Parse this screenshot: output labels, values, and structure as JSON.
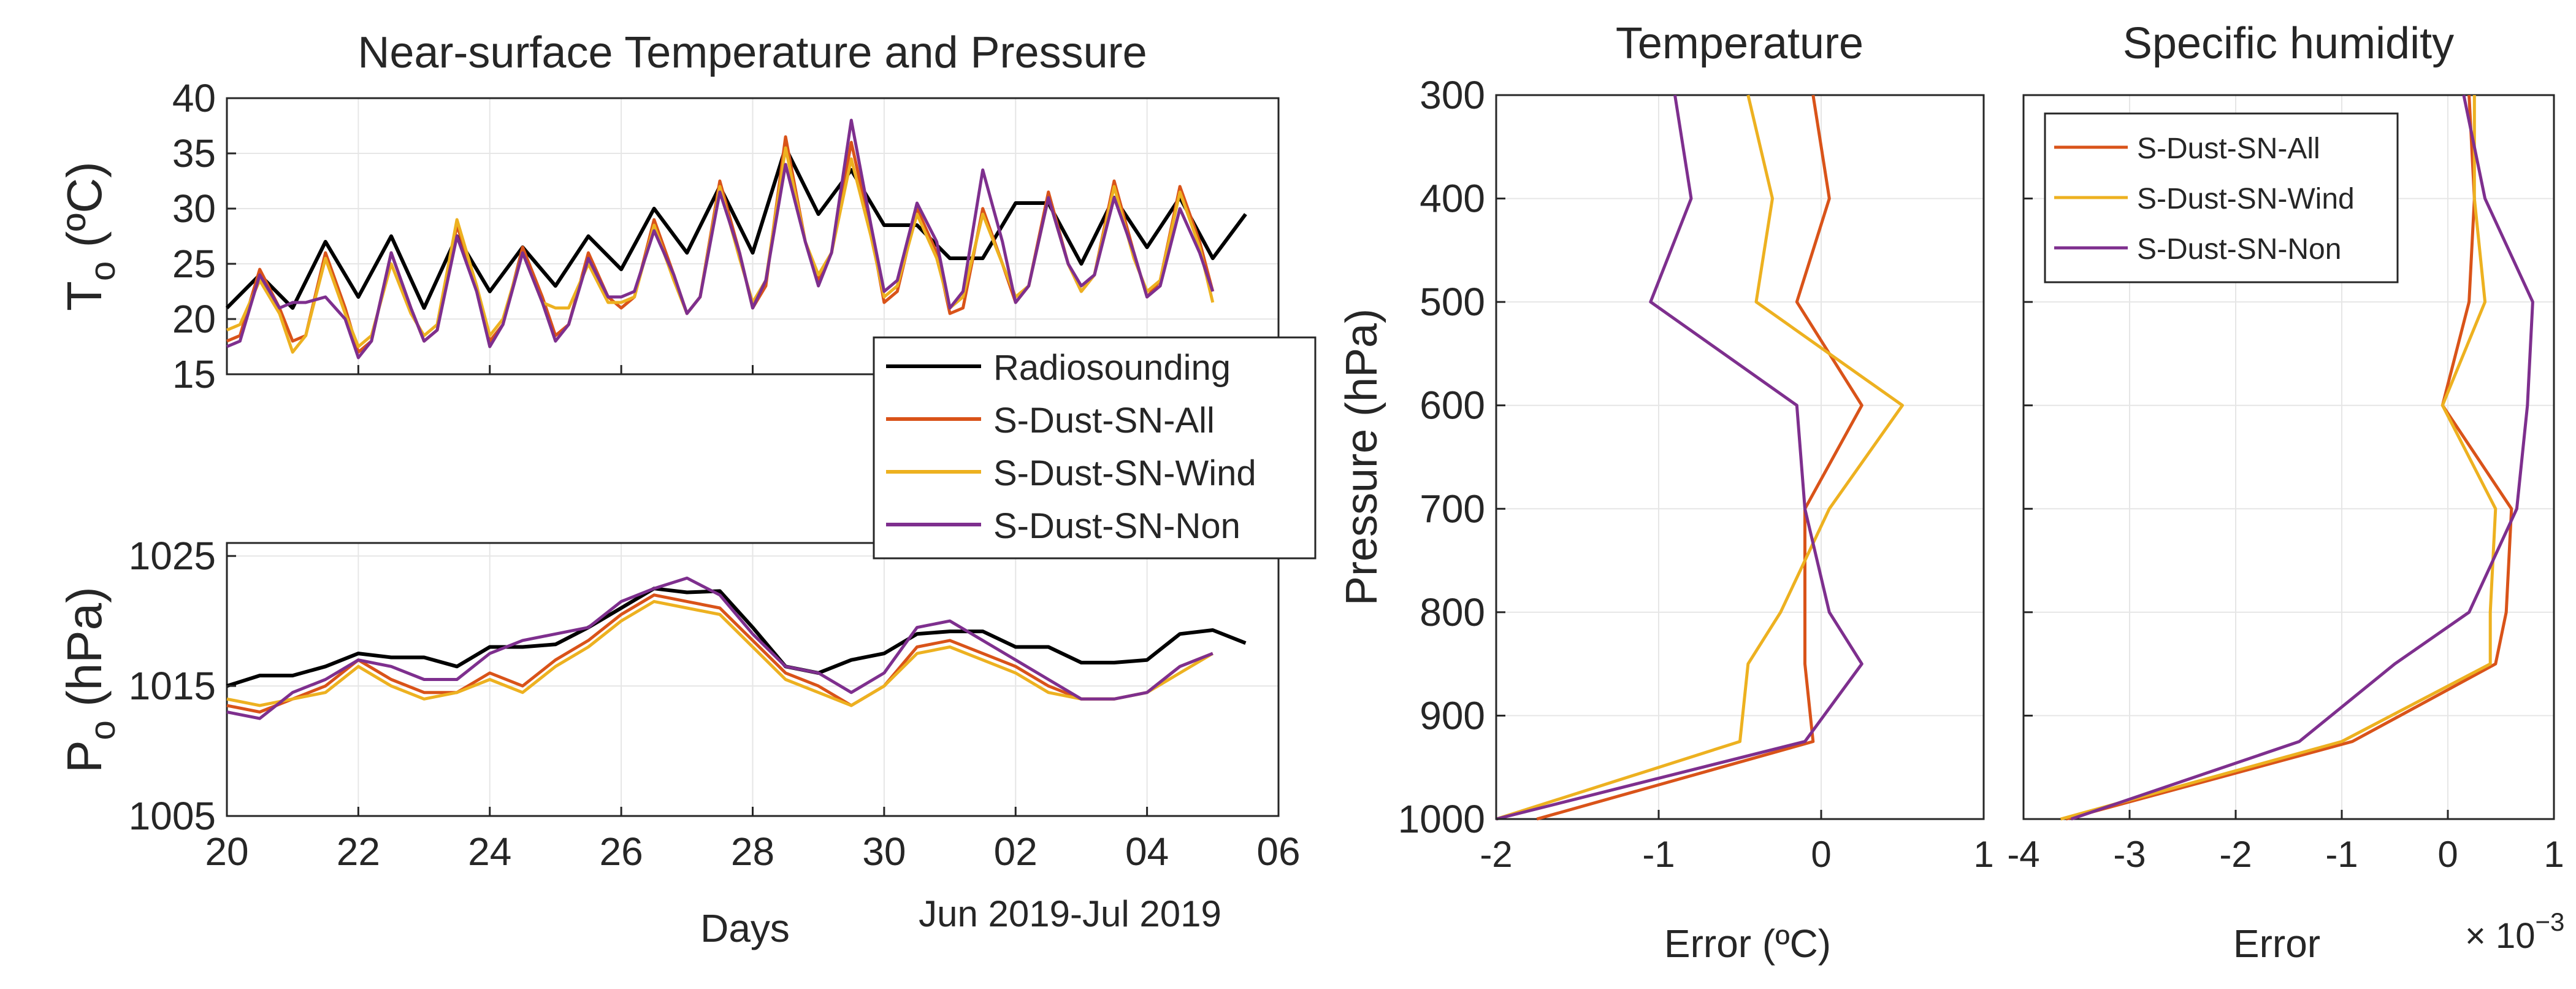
{
  "colors": {
    "radiosounding": "#000000",
    "all": "#d95319",
    "wind": "#edb120",
    "non": "#7e2f8e",
    "grid": "#e6e6e6",
    "axis": "#262626"
  },
  "legend_labels": [
    "Radiosounding",
    "S-Dust-SN-All",
    "S-Dust-SN-Wind",
    "S-Dust-SN-Non"
  ],
  "chart_data": [
    {
      "type": "line",
      "panel": "temperature-time",
      "title": "Near-surface Temperature and Pressure",
      "ylabel_main": "T",
      "ylabel_sub": "o",
      "ylabel_unit": "(ºC)",
      "ylim": [
        15,
        40
      ],
      "yticks": [
        15,
        20,
        25,
        30,
        35,
        40
      ],
      "xlim": [
        20,
        36
      ],
      "grid": true,
      "legend": "right",
      "series": [
        {
          "name": "Radiosounding",
          "x": [
            20,
            20.5,
            21,
            21.5,
            22,
            22.5,
            23,
            23.5,
            24,
            24.5,
            25,
            25.5,
            26,
            26.5,
            27,
            27.5,
            28,
            28.5,
            29,
            29.5,
            30,
            30.5,
            31,
            31.5,
            32,
            32.5,
            33,
            33.5,
            34,
            34.5,
            35,
            35.5
          ],
          "y": [
            21,
            24,
            21,
            27,
            22,
            27.5,
            21,
            27.5,
            22.5,
            26.5,
            23,
            27.5,
            24.5,
            30,
            26,
            32,
            26,
            35.5,
            29.5,
            33.5,
            28.5,
            28.5,
            25.5,
            25.5,
            30.5,
            30.5,
            25,
            31,
            26.5,
            31,
            25.5,
            29.5
          ]
        },
        {
          "name": "S-Dust-SN-All",
          "x": [
            20,
            20.2,
            20.5,
            20.8,
            21,
            21.2,
            21.5,
            21.8,
            22,
            22.2,
            22.5,
            22.8,
            23,
            23.2,
            23.5,
            23.8,
            24,
            24.2,
            24.5,
            24.8,
            25,
            25.2,
            25.5,
            25.8,
            26,
            26.2,
            26.5,
            26.8,
            27,
            27.2,
            27.5,
            27.8,
            28,
            28.2,
            28.5,
            28.8,
            29,
            29.2,
            29.5,
            29.8,
            30,
            30.2,
            30.5,
            30.8,
            31,
            31.2,
            31.5,
            31.8,
            32,
            32.2,
            32.5,
            32.8,
            33,
            33.2,
            33.5,
            33.8,
            34,
            34.2,
            34.5,
            34.8,
            35
          ],
          "y": [
            18,
            18.5,
            24.5,
            21,
            18,
            18.5,
            26,
            21,
            17,
            18,
            26,
            21,
            18,
            19,
            28.5,
            23,
            18,
            19.5,
            26.5,
            22,
            18.5,
            19.5,
            26,
            22,
            21,
            22,
            29,
            24,
            20.5,
            22,
            32.5,
            26,
            21,
            23,
            36.5,
            27,
            23.5,
            26,
            36,
            28,
            21.5,
            22.5,
            30,
            26,
            20.5,
            21,
            30,
            25,
            21.5,
            23,
            31.5,
            25,
            22.5,
            24,
            32.5,
            26,
            22,
            23.5,
            32,
            27,
            22.5
          ]
        },
        {
          "name": "S-Dust-SN-Wind",
          "x": [
            20,
            20.2,
            20.5,
            20.8,
            21,
            21.2,
            21.5,
            21.8,
            22,
            22.2,
            22.5,
            22.8,
            23,
            23.2,
            23.5,
            23.8,
            24,
            24.2,
            24.5,
            24.8,
            25,
            25.2,
            25.5,
            25.8,
            26,
            26.2,
            26.5,
            26.8,
            27,
            27.2,
            27.5,
            27.8,
            28,
            28.2,
            28.5,
            28.8,
            29,
            29.2,
            29.5,
            29.8,
            30,
            30.2,
            30.5,
            30.8,
            31,
            31.2,
            31.5,
            31.8,
            32,
            32.2,
            32.5,
            32.8,
            33,
            33.2,
            33.5,
            33.8,
            34,
            34.2,
            34.5,
            34.8,
            35
          ],
          "y": [
            19,
            19.5,
            23.5,
            20.5,
            17,
            18.5,
            25.5,
            20.5,
            17.5,
            18.5,
            25,
            20.5,
            18.5,
            19.5,
            29,
            23,
            18.5,
            20,
            26,
            21.5,
            21,
            21,
            25,
            21.5,
            21.5,
            22,
            28.5,
            23.5,
            20.5,
            22,
            32,
            25.5,
            21.5,
            23.5,
            35.5,
            27,
            24,
            26,
            34.5,
            27.5,
            22,
            23,
            29.5,
            25.5,
            21,
            22,
            29.5,
            25,
            22,
            23,
            31,
            25,
            22.5,
            24,
            32,
            25.5,
            22.5,
            23.5,
            31.5,
            26.5,
            21.5
          ]
        },
        {
          "name": "S-Dust-SN-Non",
          "x": [
            20,
            20.2,
            20.5,
            20.8,
            21,
            21.2,
            21.5,
            21.8,
            22,
            22.2,
            22.5,
            22.8,
            23,
            23.2,
            23.5,
            23.8,
            24,
            24.2,
            24.5,
            24.8,
            25,
            25.2,
            25.5,
            25.8,
            26,
            26.2,
            26.5,
            26.8,
            27,
            27.2,
            27.5,
            27.8,
            28,
            28.2,
            28.5,
            28.8,
            29,
            29.2,
            29.5,
            29.8,
            30,
            30.2,
            30.5,
            30.8,
            31,
            31.2,
            31.5,
            31.8,
            32,
            32.2,
            32.5,
            32.8,
            33,
            33.2,
            33.5,
            33.8,
            34,
            34.2,
            34.5,
            34.8,
            35
          ],
          "y": [
            17.5,
            18,
            24,
            21,
            21.5,
            21.5,
            22,
            20,
            16.5,
            18,
            26,
            21,
            18,
            19,
            27.5,
            22.5,
            17.5,
            19.5,
            26,
            21.5,
            18,
            19.5,
            25.5,
            22,
            22,
            22.5,
            28,
            24,
            20.5,
            22,
            31.5,
            26,
            21,
            23.5,
            34,
            27,
            23,
            26,
            38,
            28.5,
            22.5,
            23.5,
            30.5,
            27,
            21,
            22.5,
            33.5,
            27,
            21.5,
            23,
            31,
            25,
            23,
            24,
            31,
            26,
            22,
            23,
            30,
            26,
            22.5
          ]
        }
      ]
    },
    {
      "type": "line",
      "panel": "pressure-time",
      "ylabel_main": "P",
      "ylabel_sub": "o",
      "ylabel_unit": "(hPa)",
      "ylim": [
        1005,
        1026
      ],
      "yticks": [
        1005,
        1015,
        1025
      ],
      "xlim": [
        20,
        36
      ],
      "xticks": [
        "20",
        "22",
        "24",
        "26",
        "28",
        "30",
        "02",
        "04",
        "06"
      ],
      "xlabel": "Days",
      "xlabel_extra": "Jun 2019-Jul 2019",
      "grid": true,
      "series": [
        {
          "name": "Radiosounding",
          "x": [
            20,
            20.5,
            21,
            21.5,
            22,
            22.5,
            23,
            23.5,
            24,
            24.5,
            25,
            25.5,
            26,
            26.5,
            27,
            27.5,
            28,
            28.5,
            29,
            29.5,
            30,
            30.5,
            31,
            31.5,
            32,
            32.5,
            33,
            33.5,
            34,
            34.5,
            35,
            35.5
          ],
          "y": [
            1015,
            1015.8,
            1015.8,
            1016.5,
            1017.5,
            1017.2,
            1017.2,
            1016.5,
            1018,
            1018,
            1018.2,
            1019.5,
            1021,
            1022.5,
            1022.2,
            1022.3,
            1019.5,
            1016.5,
            1016,
            1017,
            1017.5,
            1019,
            1019.2,
            1019.2,
            1018,
            1018,
            1016.8,
            1016.8,
            1017,
            1019,
            1019.3,
            1018.3
          ]
        },
        {
          "name": "S-Dust-SN-All",
          "x": [
            20,
            20.5,
            21,
            21.5,
            22,
            22.5,
            23,
            23.5,
            24,
            24.5,
            25,
            25.5,
            26,
            26.5,
            27,
            27.5,
            28,
            28.5,
            29,
            29.5,
            30,
            30.5,
            31,
            31.5,
            32,
            32.5,
            33,
            33.5,
            34,
            34.5,
            35
          ],
          "y": [
            1013.5,
            1013,
            1014,
            1015,
            1017,
            1015.5,
            1014.5,
            1014.5,
            1016,
            1015,
            1017,
            1018.5,
            1020.5,
            1022,
            1021.5,
            1021,
            1018.5,
            1016,
            1015,
            1013.5,
            1015,
            1018,
            1018.5,
            1017.5,
            1016.5,
            1015,
            1014,
            1014,
            1014.5,
            1016.5,
            1017.5
          ]
        },
        {
          "name": "S-Dust-SN-Wind",
          "x": [
            20,
            20.5,
            21,
            21.5,
            22,
            22.5,
            23,
            23.5,
            24,
            24.5,
            25,
            25.5,
            26,
            26.5,
            27,
            27.5,
            28,
            28.5,
            29,
            29.5,
            30,
            30.5,
            31,
            31.5,
            32,
            32.5,
            33,
            33.5,
            34,
            34.5,
            35
          ],
          "y": [
            1014,
            1013.5,
            1014,
            1014.5,
            1016.5,
            1015,
            1014,
            1014.5,
            1015.5,
            1014.5,
            1016.5,
            1018,
            1020,
            1021.5,
            1021,
            1020.5,
            1018,
            1015.5,
            1014.5,
            1013.5,
            1015,
            1017.5,
            1018,
            1017,
            1016,
            1014.5,
            1014,
            1014,
            1014.5,
            1016,
            1017.5
          ]
        },
        {
          "name": "S-Dust-SN-Non",
          "x": [
            20,
            20.5,
            21,
            21.5,
            22,
            22.5,
            23,
            23.5,
            24,
            24.5,
            25,
            25.5,
            26,
            26.5,
            27,
            27.5,
            28,
            28.5,
            29,
            29.5,
            30,
            30.5,
            31,
            31.5,
            32,
            32.5,
            33,
            33.5,
            34,
            34.5,
            35
          ],
          "y": [
            1013,
            1012.5,
            1014.5,
            1015.5,
            1017,
            1016.5,
            1015.5,
            1015.5,
            1017.5,
            1018.5,
            1019,
            1019.5,
            1021.5,
            1022.5,
            1023.3,
            1022,
            1019,
            1016.5,
            1016,
            1014.5,
            1016,
            1019.5,
            1020,
            1018.5,
            1017,
            1015.5,
            1014,
            1014,
            1014.5,
            1016.5,
            1017.5
          ]
        }
      ]
    },
    {
      "type": "line",
      "panel": "temperature-profile",
      "title": "Temperature",
      "xlabel": "Error (ºC)",
      "ylabel": "Pressure (hPa)",
      "xlim": [
        -2,
        1
      ],
      "xticks": [
        -2,
        -1,
        0,
        1
      ],
      "ylim": [
        300,
        1000
      ],
      "yticks": [
        300,
        400,
        500,
        600,
        700,
        800,
        900,
        1000
      ],
      "y_reversed": true,
      "grid": true,
      "series": [
        {
          "name": "S-Dust-SN-All",
          "x": [
            -0.05,
            0.05,
            -0.15,
            0.25,
            -0.1,
            -0.1,
            -0.1,
            -0.05,
            -1.75
          ],
          "y": [
            300,
            400,
            500,
            600,
            700,
            800,
            850,
            925,
            1000
          ]
        },
        {
          "name": "S-Dust-SN-Wind",
          "x": [
            -0.45,
            -0.3,
            -0.4,
            0.5,
            0.05,
            -0.25,
            -0.45,
            -0.5,
            -2.0
          ],
          "y": [
            300,
            400,
            500,
            600,
            700,
            800,
            850,
            925,
            1000
          ]
        },
        {
          "name": "S-Dust-SN-Non",
          "x": [
            -0.9,
            -0.8,
            -1.05,
            -0.15,
            -0.1,
            0.05,
            0.25,
            -0.1,
            -2.0
          ],
          "y": [
            300,
            400,
            500,
            600,
            700,
            800,
            850,
            925,
            1000
          ]
        }
      ]
    },
    {
      "type": "line",
      "panel": "humidity-profile",
      "title": "Specific humidity",
      "xlabel": "Error",
      "x_multiplier": "× 10",
      "x_multiplier_exp": "−3",
      "xlim": [
        -4,
        1
      ],
      "xticks": [
        -4,
        -3,
        -2,
        -1,
        0,
        1
      ],
      "ylim": [
        300,
        1000
      ],
      "y_reversed": true,
      "grid": true,
      "legend": "top-left",
      "series": [
        {
          "name": "S-Dust-SN-All",
          "x": [
            0.2,
            0.25,
            0.2,
            -0.05,
            0.6,
            0.55,
            0.45,
            -0.9,
            -3.6
          ],
          "y": [
            300,
            400,
            500,
            600,
            700,
            800,
            850,
            925,
            1000
          ]
        },
        {
          "name": "S-Dust-SN-Wind",
          "x": [
            0.25,
            0.25,
            0.35,
            -0.05,
            0.45,
            0.4,
            0.4,
            -1.0,
            -3.65
          ],
          "y": [
            300,
            400,
            500,
            600,
            700,
            800,
            850,
            925,
            1000
          ]
        },
        {
          "name": "S-Dust-SN-Non",
          "x": [
            0.15,
            0.35,
            0.8,
            0.75,
            0.65,
            0.2,
            -0.5,
            -1.4,
            -3.55
          ],
          "y": [
            300,
            400,
            500,
            600,
            700,
            800,
            850,
            925,
            1000
          ]
        }
      ]
    }
  ]
}
